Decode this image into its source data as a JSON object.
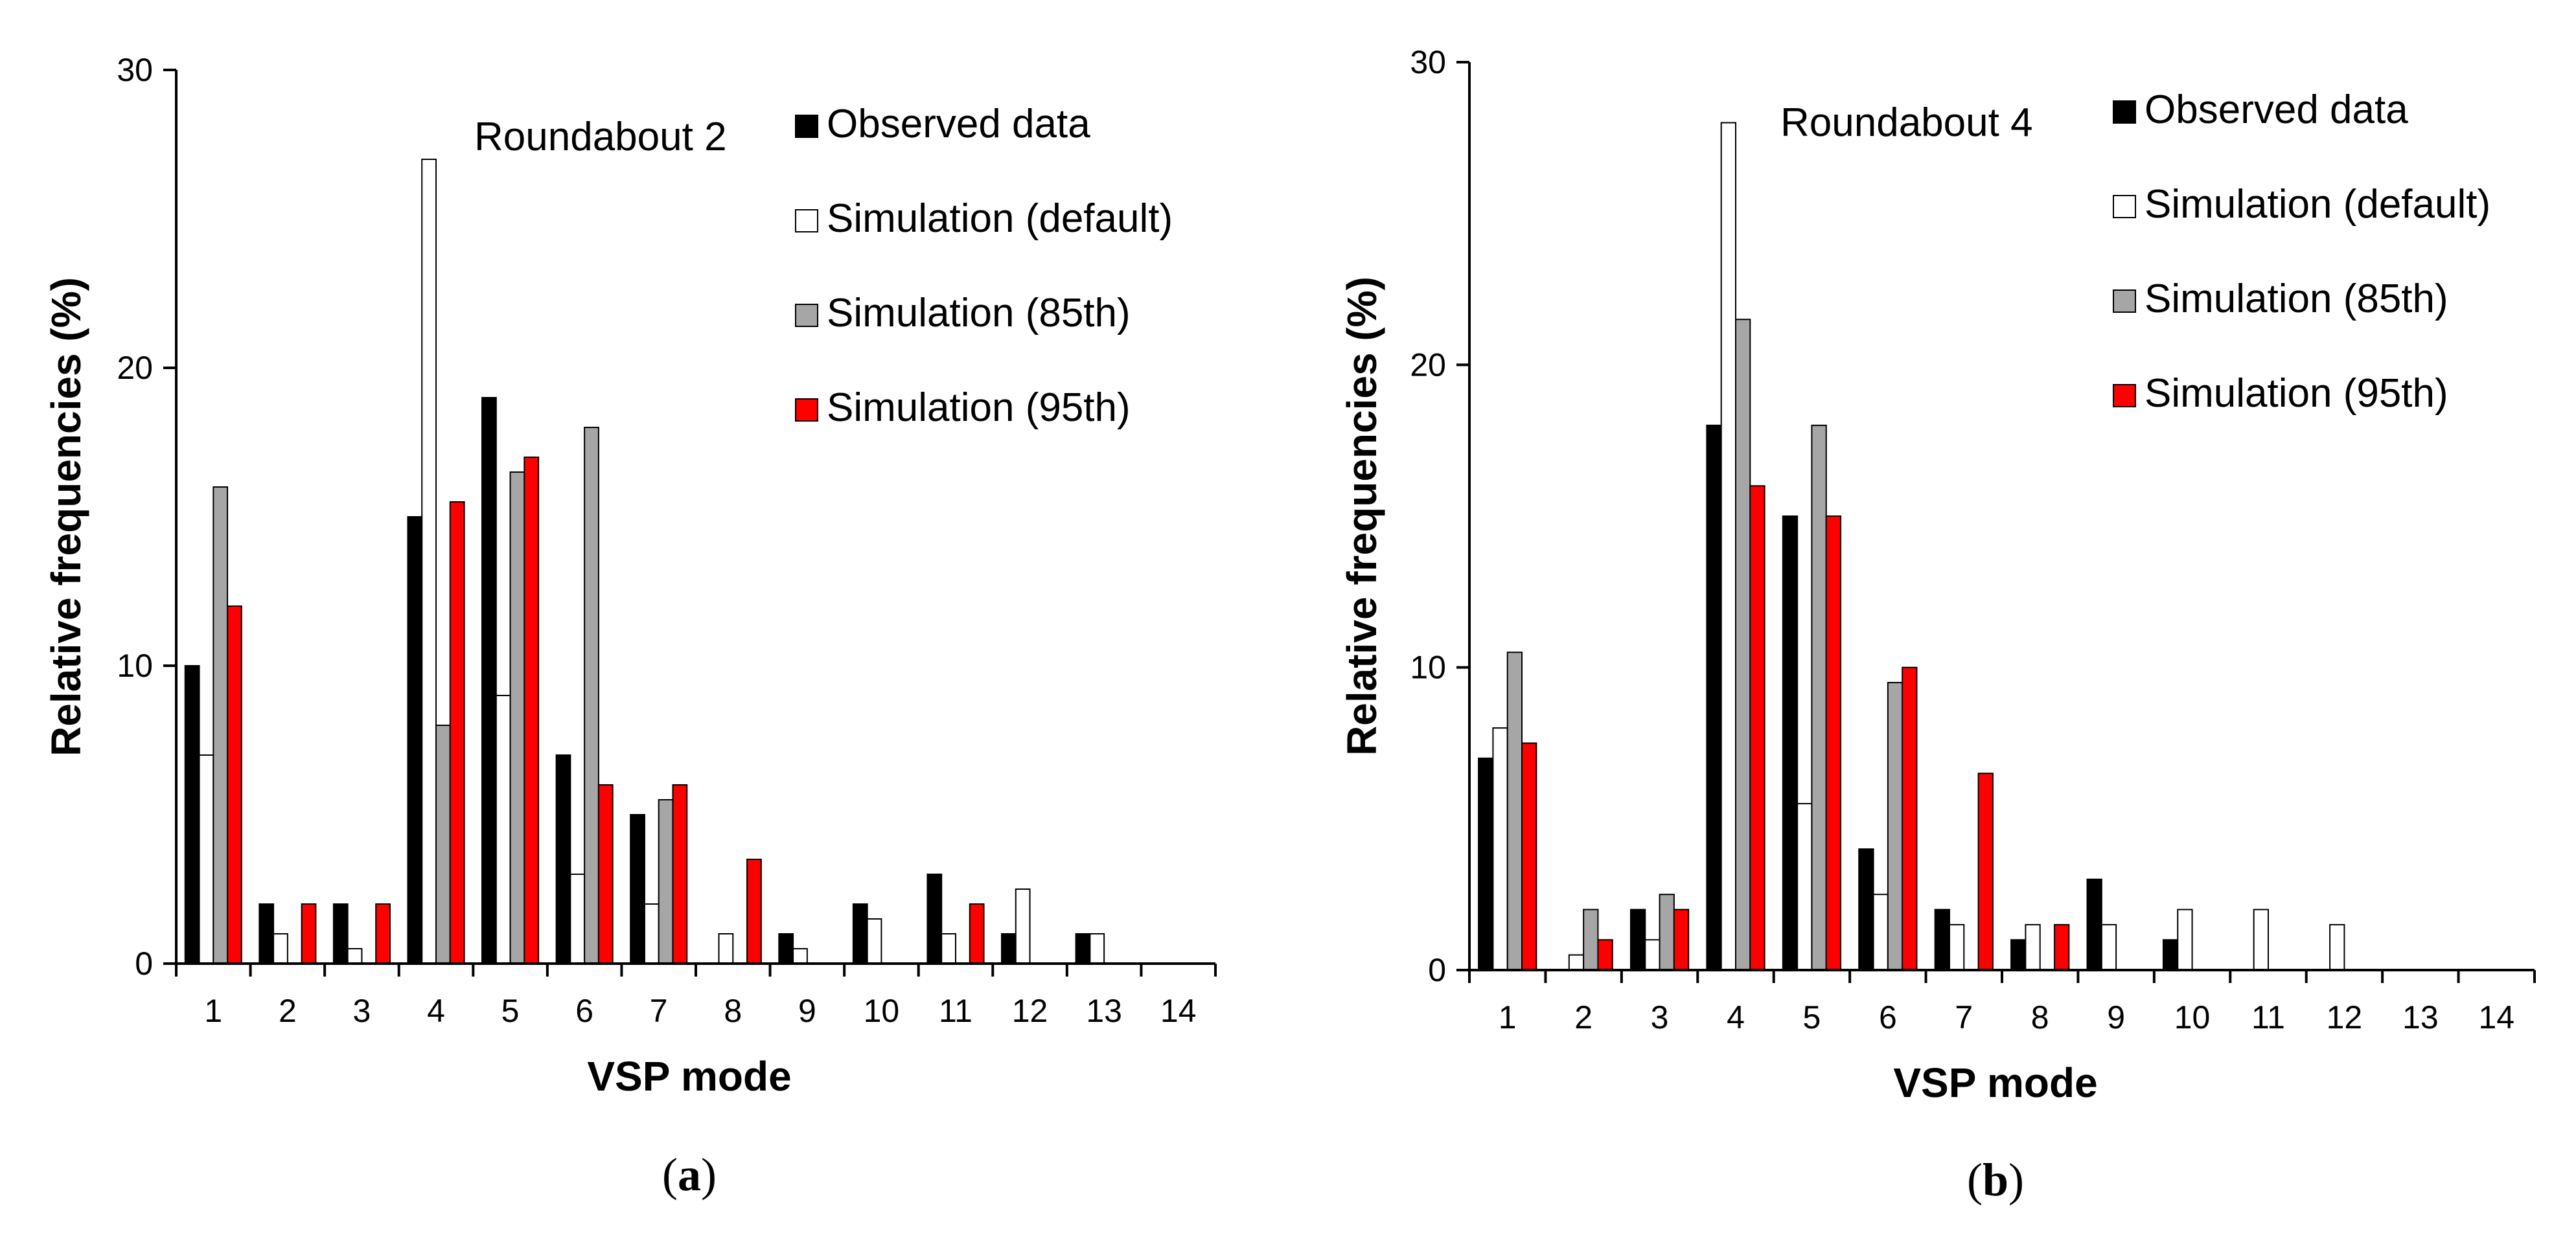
{
  "chart_data": [
    {
      "type": "bar",
      "panel_label": "a",
      "title": "Roundabout 2",
      "xlabel": "VSP mode",
      "ylabel": "Relative frequencies (%)",
      "ylim": [
        0,
        30
      ],
      "yticks": [
        0,
        10,
        20,
        30
      ],
      "grid": false,
      "legend_position": "top-right",
      "categories": [
        "1",
        "2",
        "3",
        "4",
        "5",
        "6",
        "7",
        "8",
        "9",
        "10",
        "11",
        "12",
        "13",
        "14"
      ],
      "series": [
        {
          "name": "Observed data",
          "color": "#000000",
          "values": [
            10,
            2,
            2,
            15,
            19,
            7,
            5,
            0,
            1,
            2,
            3,
            1,
            1,
            0
          ]
        },
        {
          "name": "Simulation (default)",
          "color": "#ffffff",
          "values": [
            7,
            1,
            0.5,
            27,
            9,
            3,
            2,
            1,
            0.5,
            1.5,
            1,
            2.5,
            1,
            0
          ]
        },
        {
          "name": "Simulation (85th)",
          "color": "#a6a6a6",
          "values": [
            16,
            0,
            0,
            8,
            16.5,
            18,
            5.5,
            0,
            0,
            0,
            0,
            0,
            0,
            0
          ]
        },
        {
          "name": "Simulation (95th)",
          "color": "#ff0000",
          "values": [
            12,
            2,
            2,
            15.5,
            17,
            6,
            6,
            3.5,
            0,
            0,
            2,
            0,
            0,
            0
          ]
        }
      ]
    },
    {
      "type": "bar",
      "panel_label": "b",
      "title": "Roundabout 4",
      "xlabel": "VSP mode",
      "ylabel": "Relative frequencies (%)",
      "ylim": [
        0,
        30
      ],
      "yticks": [
        0,
        10,
        20,
        30
      ],
      "grid": false,
      "legend_position": "top-right",
      "categories": [
        "1",
        "2",
        "3",
        "4",
        "5",
        "6",
        "7",
        "8",
        "9",
        "10",
        "11",
        "12",
        "13",
        "14"
      ],
      "series": [
        {
          "name": "Observed data",
          "color": "#000000",
          "values": [
            7,
            0,
            2,
            18,
            15,
            4,
            2,
            1,
            3,
            1,
            0,
            0,
            0,
            0
          ]
        },
        {
          "name": "Simulation (default)",
          "color": "#ffffff",
          "values": [
            8,
            0.5,
            1,
            28,
            5.5,
            2.5,
            1.5,
            1.5,
            1.5,
            2,
            2,
            1.5,
            0,
            0
          ]
        },
        {
          "name": "Simulation (85th)",
          "color": "#a6a6a6",
          "values": [
            10.5,
            2,
            2.5,
            21.5,
            18,
            9.5,
            0,
            0,
            0,
            0,
            0,
            0,
            0,
            0
          ]
        },
        {
          "name": "Simulation (95th)",
          "color": "#ff0000",
          "values": [
            7.5,
            1,
            2,
            16,
            15,
            10,
            6.5,
            1.5,
            0,
            0,
            0,
            0,
            0,
            0
          ]
        }
      ]
    }
  ]
}
